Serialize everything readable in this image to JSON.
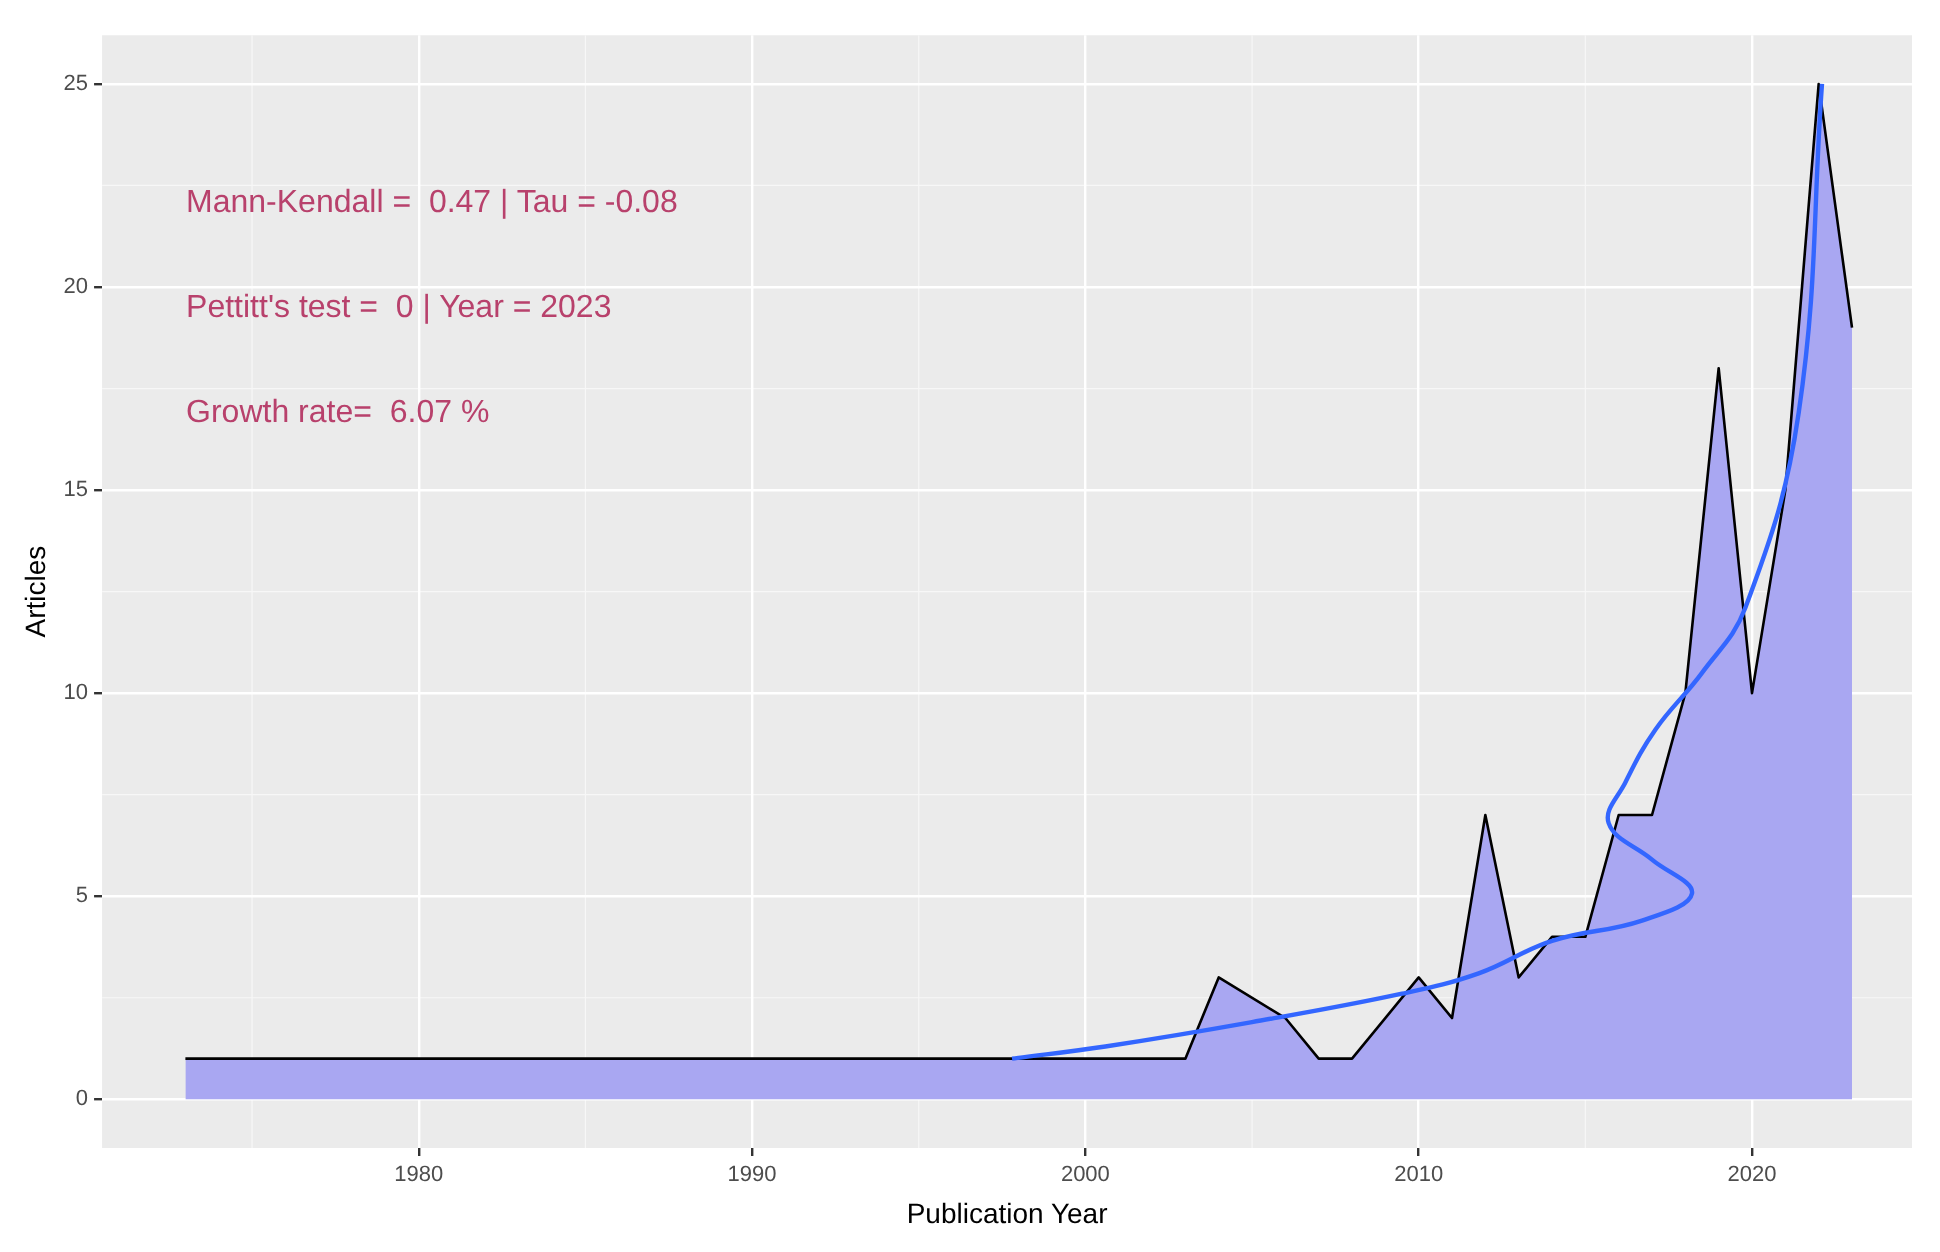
{
  "chart_data": {
    "type": "area",
    "xlabel": "Publication Year",
    "ylabel": "Articles",
    "annotations": [
      "Mann-Kendall =  0.47 | Tau = -0.08",
      "Pettitt's test =  0 | Year = 2023",
      "Growth rate=  6.07 %"
    ],
    "series": [
      {
        "color": "#a9a7f2",
        "x": [
          1973,
          2003,
          2004,
          2006,
          2007,
          2008,
          2010,
          2011,
          2012,
          2013,
          2014,
          2015,
          2016,
          2017,
          2018,
          2019,
          2020,
          2021,
          2022,
          2023
        ],
        "values": [
          1,
          1,
          3,
          2,
          1,
          1,
          3,
          2,
          7,
          3,
          4,
          4,
          7,
          7,
          10,
          18,
          10,
          15,
          25,
          19
        ]
      },
      {
        "type": "line",
        "color": "#3366ff",
        "x": [
          1997.8,
          2000.6,
          2005,
          2009.5,
          2011.8,
          2014,
          2016.7,
          2018.2,
          2017,
          2015.7,
          2016.2,
          2017.1,
          2018.5,
          2019.8,
          2021.4,
          2022.1
        ],
        "values": [
          1.0,
          1.3,
          1.9,
          2.6,
          3.1,
          3.9,
          4.4,
          5.07,
          5.9,
          6.8,
          7.8,
          9.1,
          10.5,
          12.1,
          16.9,
          25
        ]
      }
    ],
    "xlim": [
      1970.5,
      2024.8
    ],
    "xticks": [
      1980,
      1990,
      2000,
      2010,
      2020
    ],
    "ylim": [
      -1.2,
      26.2
    ],
    "yticks": [
      0,
      5,
      10,
      15,
      20,
      25
    ],
    "grid": true,
    "legend": false
  }
}
